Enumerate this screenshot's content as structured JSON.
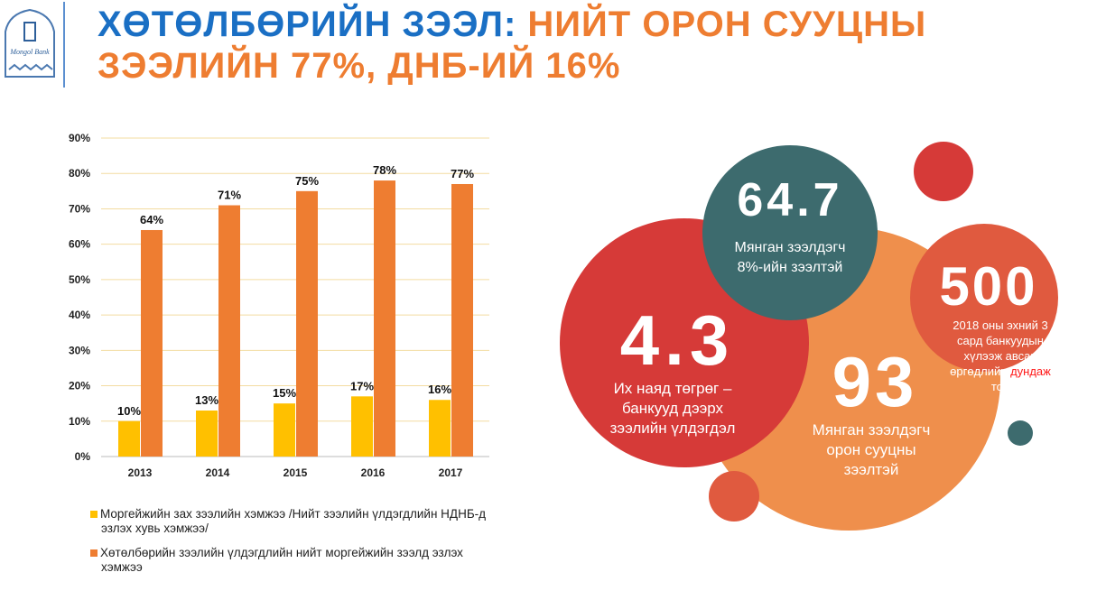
{
  "title": {
    "part1": "ХӨТӨЛБӨРИЙН ЗЭЭЛ:",
    "part2": " НИЙТ ОРОН СУУЦНЫ",
    "line2": "ЗЭЭЛИЙН 77%, ДНБ-ИЙ 16%"
  },
  "logo": {
    "text": "Mongol Bank"
  },
  "colors": {
    "blue": "#1a6fc4",
    "orange": "#ee7d31",
    "yellow": "#ffc000"
  },
  "chart_data": {
    "type": "bar",
    "categories": [
      "2013",
      "2014",
      "2015",
      "2016",
      "2017"
    ],
    "ylim": [
      0,
      90
    ],
    "yticks": [
      "0%",
      "10%",
      "20%",
      "30%",
      "40%",
      "50%",
      "60%",
      "70%",
      "80%",
      "90%"
    ],
    "grid": true,
    "legend": "bottom",
    "series": [
      {
        "name": "Моргейжийн зах зээлийн хэмжээ /Нийт зээлийн үлдэгдлийн НДНБ-д эзлэх хувь хэмжээ/",
        "color": "#ffc000",
        "values": [
          10,
          13,
          15,
          17,
          16
        ],
        "labels": [
          "10%",
          "13%",
          "15%",
          "17%",
          "16%"
        ]
      },
      {
        "name": "Хөтөлбөрийн зээлийн үлдэгдлийн нийт моргейжийн зээлд эзлэх хэмжээ",
        "color": "#ee7d31",
        "values": [
          64,
          71,
          75,
          78,
          77
        ],
        "labels": [
          "64%",
          "71%",
          "75%",
          "78%",
          "77%"
        ]
      }
    ]
  },
  "bubbles": [
    {
      "value": "4.3",
      "text": "Их наяд төгрөг – банкууд дээрх зээлийн үлдэгдэл",
      "color": "#d63a38"
    },
    {
      "value": "64.7",
      "text": "Мянган зээлдэгч 8%-ийн зээлтэй",
      "color": "#3d6b6e"
    },
    {
      "value": "93",
      "text": "Мянган зээлдэгч орон сууцны зээлтэй",
      "color": "#ef8f4c"
    },
    {
      "value": "500",
      "text1": "2018 оны эхний 3 сард банкуудын хүлээж авсан өргөдлийн ",
      "highlight": "дундаж",
      "text2": " тоо",
      "color": "#e05a3f"
    }
  ]
}
